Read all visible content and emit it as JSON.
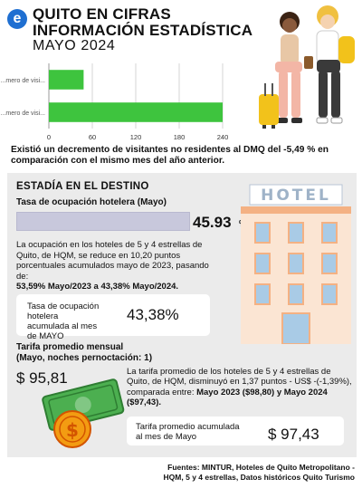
{
  "header": {
    "logo_letter": "e",
    "title_line1": "QUITO EN CIFRAS",
    "title_line2": "INFORMACIÓN ESTADÍSTICA",
    "title_line3": "MAYO 2024"
  },
  "chart_data": {
    "type": "bar",
    "orientation": "horizontal",
    "categories": [
      "...mero de visi...",
      "...mero de visi..."
    ],
    "values": [
      48,
      240
    ],
    "xlim": [
      0,
      240
    ],
    "xticks": [
      "0",
      "60",
      "120",
      "180",
      "240"
    ],
    "bar_color": "#3ec43e",
    "grid": true
  },
  "summary": "Existió un decremento de visitantes no residentes al DMQ del -5,49 % en comparación con el mismo mes del año anterior.",
  "estadia": {
    "section_title": "ESTADÍA EN EL DESTINO",
    "occupancy_label": "Tasa de ocupación hotelera (Mayo)",
    "occupancy_value": "45.93",
    "occupancy_unit": "%",
    "occupancy_text": "La ocupación en los hoteles de 5 y 4 estrellas de Quito, de HQM, se reduce en 10,20 puntos porcentuales acumulados mayo de 2023, pasando de:",
    "occupancy_change": "53,59% Mayo/2023 a 43,38% Mayo/2024.",
    "occupancy_card_label": "Tasa de ocupación hotelera acumulada al mes de MAYO",
    "occupancy_card_value": "43,38%",
    "hotel_sign": "HOTEL"
  },
  "tarifa": {
    "label_line1": "Tarifa promedio mensual",
    "label_line2": "(Mayo, noches pernoctación: 1)",
    "value": "$ 95,81",
    "text": "La tarifa promedio de los hoteles de 5 y 4 estrellas de Quito, de HQM, disminuyó en 1,37 puntos - US$ -(-1,39%), comparada entre:",
    "text_bold": "Mayo 2023 ($98,80) y Mayo 2024 ($97,43).",
    "card_label": "Tarifa promedio acumulada al mes de Mayo",
    "card_value": "$ 97,43",
    "coin_symbol": "$"
  },
  "sources": "Fuentes: MINTUR, Hoteles de Quito Metropolitano - HQM, 5 y 4 estrellas, Datos históricos Quito Turismo",
  "colors": {
    "accent_blue": "#1f6fd1",
    "bar_green": "#3ec43e",
    "section_bg": "#ebebeb",
    "hotel_orange": "#f4b183",
    "money_green": "#4caf50",
    "coin_orange": "#f39c12"
  }
}
